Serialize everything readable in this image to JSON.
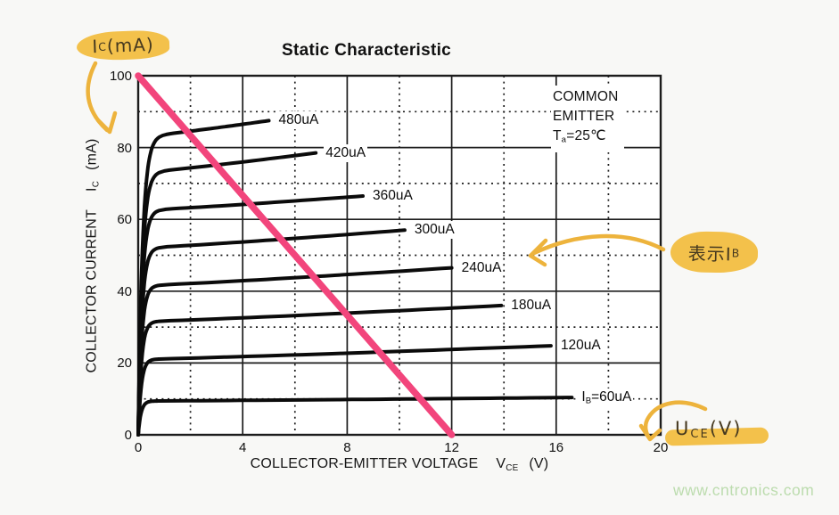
{
  "chart": {
    "title": "Static Characteristic",
    "info": {
      "line1": "COMMON",
      "line2": "EMITTER",
      "temp_prefix": "T",
      "temp_sub": "a",
      "temp_rest": "=25℃"
    },
    "x_axis": {
      "label_main": "COLLECTOR-EMITTER VOLTAGE",
      "label_sym": "V",
      "label_sub": "CE",
      "label_unit": "(V)"
    },
    "y_axis": {
      "label_main": "COLLECTOR CURRENT",
      "label_sym": "I",
      "label_sub": "C",
      "label_unit": "(mA)"
    }
  },
  "chart_data": {
    "type": "line",
    "title": "Static Characteristic",
    "xlabel": "COLLECTOR-EMITTER VOLTAGE VCE (V)",
    "ylabel": "COLLECTOR CURRENT IC (mA)",
    "xlim": [
      0,
      20
    ],
    "ylim": [
      0,
      100
    ],
    "x_major_ticks": [
      0,
      4,
      8,
      12,
      16,
      20
    ],
    "x_minor_ticks": [
      2,
      6,
      10,
      14,
      18
    ],
    "y_major_ticks": [
      0,
      20,
      40,
      60,
      80,
      100
    ],
    "y_minor_ticks": [
      10,
      30,
      50,
      70,
      90
    ],
    "grid": "major solid, minor dotted",
    "legend_position": "labels at curve ends",
    "series": [
      {
        "name": "IB=480uA",
        "label_prefix": "",
        "label_sub": "",
        "label_text": "480uA",
        "i_sat": 83,
        "v_end": 5.0,
        "i_end": 87.5
      },
      {
        "name": "IB=420uA",
        "label_prefix": "",
        "label_sub": "",
        "label_text": "420uA",
        "i_sat": 73,
        "v_end": 6.8,
        "i_end": 78.5
      },
      {
        "name": "IB=360uA",
        "label_prefix": "",
        "label_sub": "",
        "label_text": "360uA",
        "i_sat": 62.5,
        "v_end": 8.6,
        "i_end": 66.5
      },
      {
        "name": "IB=300uA",
        "label_prefix": "",
        "label_sub": "",
        "label_text": "300uA",
        "i_sat": 52,
        "v_end": 10.2,
        "i_end": 57
      },
      {
        "name": "IB=240uA",
        "label_prefix": "",
        "label_sub": "",
        "label_text": "240uA",
        "i_sat": 41.5,
        "v_end": 12.0,
        "i_end": 46.5
      },
      {
        "name": "IB=180uA",
        "label_prefix": "",
        "label_sub": "",
        "label_text": "180uA",
        "i_sat": 31.5,
        "v_end": 13.9,
        "i_end": 36
      },
      {
        "name": "IB=120uA",
        "label_prefix": "",
        "label_sub": "",
        "label_text": "120uA",
        "i_sat": 21,
        "v_end": 15.8,
        "i_end": 24.8
      },
      {
        "name": "IB=60uA",
        "label_prefix": "I",
        "label_sub": "B",
        "label_text": "=60uA",
        "i_sat": 9.4,
        "v_end": 16.6,
        "i_end": 10.4
      }
    ],
    "load_line": {
      "points": [
        [
          0,
          100
        ],
        [
          12,
          0
        ]
      ],
      "color": "#f2457c"
    }
  },
  "annotations": {
    "ic_note": {
      "prefix": "I",
      "sub": "C",
      "rest": "(mA)"
    },
    "ib_note": {
      "prefix": "表示I",
      "sub": "B",
      "rest": ""
    },
    "uce_note": {
      "prefix": "U",
      "sub": "CE",
      "rest": "(V)"
    }
  },
  "watermark": "www.cntronics.com",
  "colors": {
    "background": "#f8f8f6",
    "plot_background": "#ffffff",
    "grid": "#1c1c1c",
    "curve": "#0b0b0b",
    "load_line": "#f2457c",
    "highlight_yellow": "#f3c14b",
    "arrow_yellow": "#edb33c",
    "handwriting": "#46391f",
    "watermark_green": "#bcdcae"
  }
}
